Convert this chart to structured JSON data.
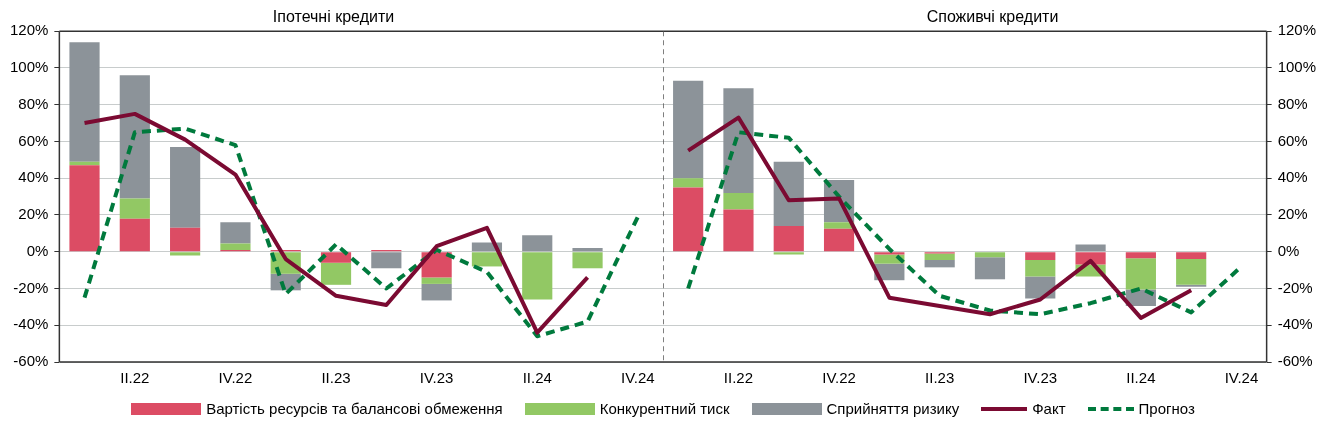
{
  "chart_data": [
    {
      "type": "bar",
      "title": "Іпотечні кредити",
      "stacked": true,
      "grid": "y",
      "legend": "bottom",
      "marker": "none",
      "categories": [
        null,
        "II.22",
        null,
        "IV.22",
        null,
        "II.23",
        null,
        "IV.23",
        null,
        "II.24",
        null,
        "IV.24"
      ],
      "ylim": [
        -60,
        120
      ],
      "yticks": [
        {
          "value": -60,
          "label": "-60%"
        },
        {
          "value": -40,
          "label": "-40%"
        },
        {
          "value": -20,
          "label": "-20%"
        },
        {
          "value": 0,
          "label": "0%"
        },
        {
          "value": 20,
          "label": "20%"
        },
        {
          "value": 40,
          "label": "40%"
        },
        {
          "value": 60,
          "label": "60%"
        },
        {
          "value": 80,
          "label": "80%"
        },
        {
          "value": 100,
          "label": "100%"
        },
        {
          "value": 120,
          "label": "120%"
        }
      ],
      "series": [
        {
          "name": "Вартість ресурсів та балансові обмеження",
          "color": "#dc4c64",
          "values": [
            47,
            18,
            13,
            1,
            1,
            -6,
            1,
            -14,
            null,
            null,
            null,
            null
          ]
        },
        {
          "name": "Конкурентний тиск",
          "color": "#92c864",
          "values": [
            2,
            11,
            -2,
            3.5,
            -12,
            -12,
            null,
            -3.5,
            -8,
            -26,
            -9,
            null
          ]
        },
        {
          "name": "Сприйняття ризику",
          "color": "#8c9399",
          "values": [
            65,
            67,
            44,
            11.5,
            -9,
            null,
            -9,
            -9,
            5,
            9,
            2,
            null
          ]
        },
        {
          "name": "Факт",
          "type": "line",
          "color": "#7b0a32",
          "line_style": "solid",
          "values": [
            70,
            75,
            61,
            42,
            -4,
            -24,
            -29,
            3,
            13,
            -44,
            -14,
            null
          ]
        },
        {
          "name": "Прогноз",
          "type": "line",
          "color": "#007a3d",
          "line_style": "dashed",
          "values": [
            -25,
            65,
            67,
            58,
            -23,
            4,
            -20,
            1,
            -11,
            -46,
            -38,
            19
          ]
        }
      ]
    },
    {
      "type": "bar",
      "title": "Споживчі кредити",
      "stacked": true,
      "grid": "y",
      "marker": "none",
      "categories": [
        null,
        "II.22",
        null,
        "IV.22",
        null,
        "II.23",
        null,
        "IV.23",
        null,
        "II.24",
        null,
        "IV.24"
      ],
      "ylim": [
        -60,
        120
      ],
      "yticks": [
        {
          "value": -60,
          "label": "-60%"
        },
        {
          "value": -40,
          "label": "-40%"
        },
        {
          "value": -20,
          "label": "-20%"
        },
        {
          "value": 0,
          "label": "0%"
        },
        {
          "value": 20,
          "label": "20%"
        },
        {
          "value": 40,
          "label": "40%"
        },
        {
          "value": 60,
          "label": "60%"
        },
        {
          "value": 80,
          "label": "80%"
        },
        {
          "value": 100,
          "label": "100%"
        },
        {
          "value": 120,
          "label": "120%"
        }
      ],
      "series": [
        {
          "color": "#dc4c64",
          "values": [
            35,
            23,
            14,
            12.5,
            -1.5,
            -1,
            null,
            -4.5,
            -7,
            -3.5,
            -4,
            null
          ]
        },
        {
          "color": "#92c864",
          "values": [
            5,
            9,
            -1.5,
            3.5,
            -5,
            -3.5,
            -3,
            -9,
            -6.5,
            -17,
            -14,
            null
          ]
        },
        {
          "color": "#8c9399",
          "values": [
            53,
            57,
            35,
            23,
            -9,
            -4,
            -12,
            -12,
            4,
            -9,
            -1,
            null
          ]
        },
        {
          "type": "line",
          "color": "#7b0a32",
          "line_style": "solid",
          "values": [
            55,
            73,
            28,
            29,
            -25,
            -29.5,
            -34,
            -26,
            -5,
            -36,
            -21,
            null
          ]
        },
        {
          "type": "line",
          "color": "#007a3d",
          "line_style": "dashed",
          "values": [
            -20,
            65,
            62,
            30,
            1.5,
            -24,
            -32,
            -34,
            -28,
            -20,
            -33,
            -8
          ]
        }
      ]
    }
  ]
}
